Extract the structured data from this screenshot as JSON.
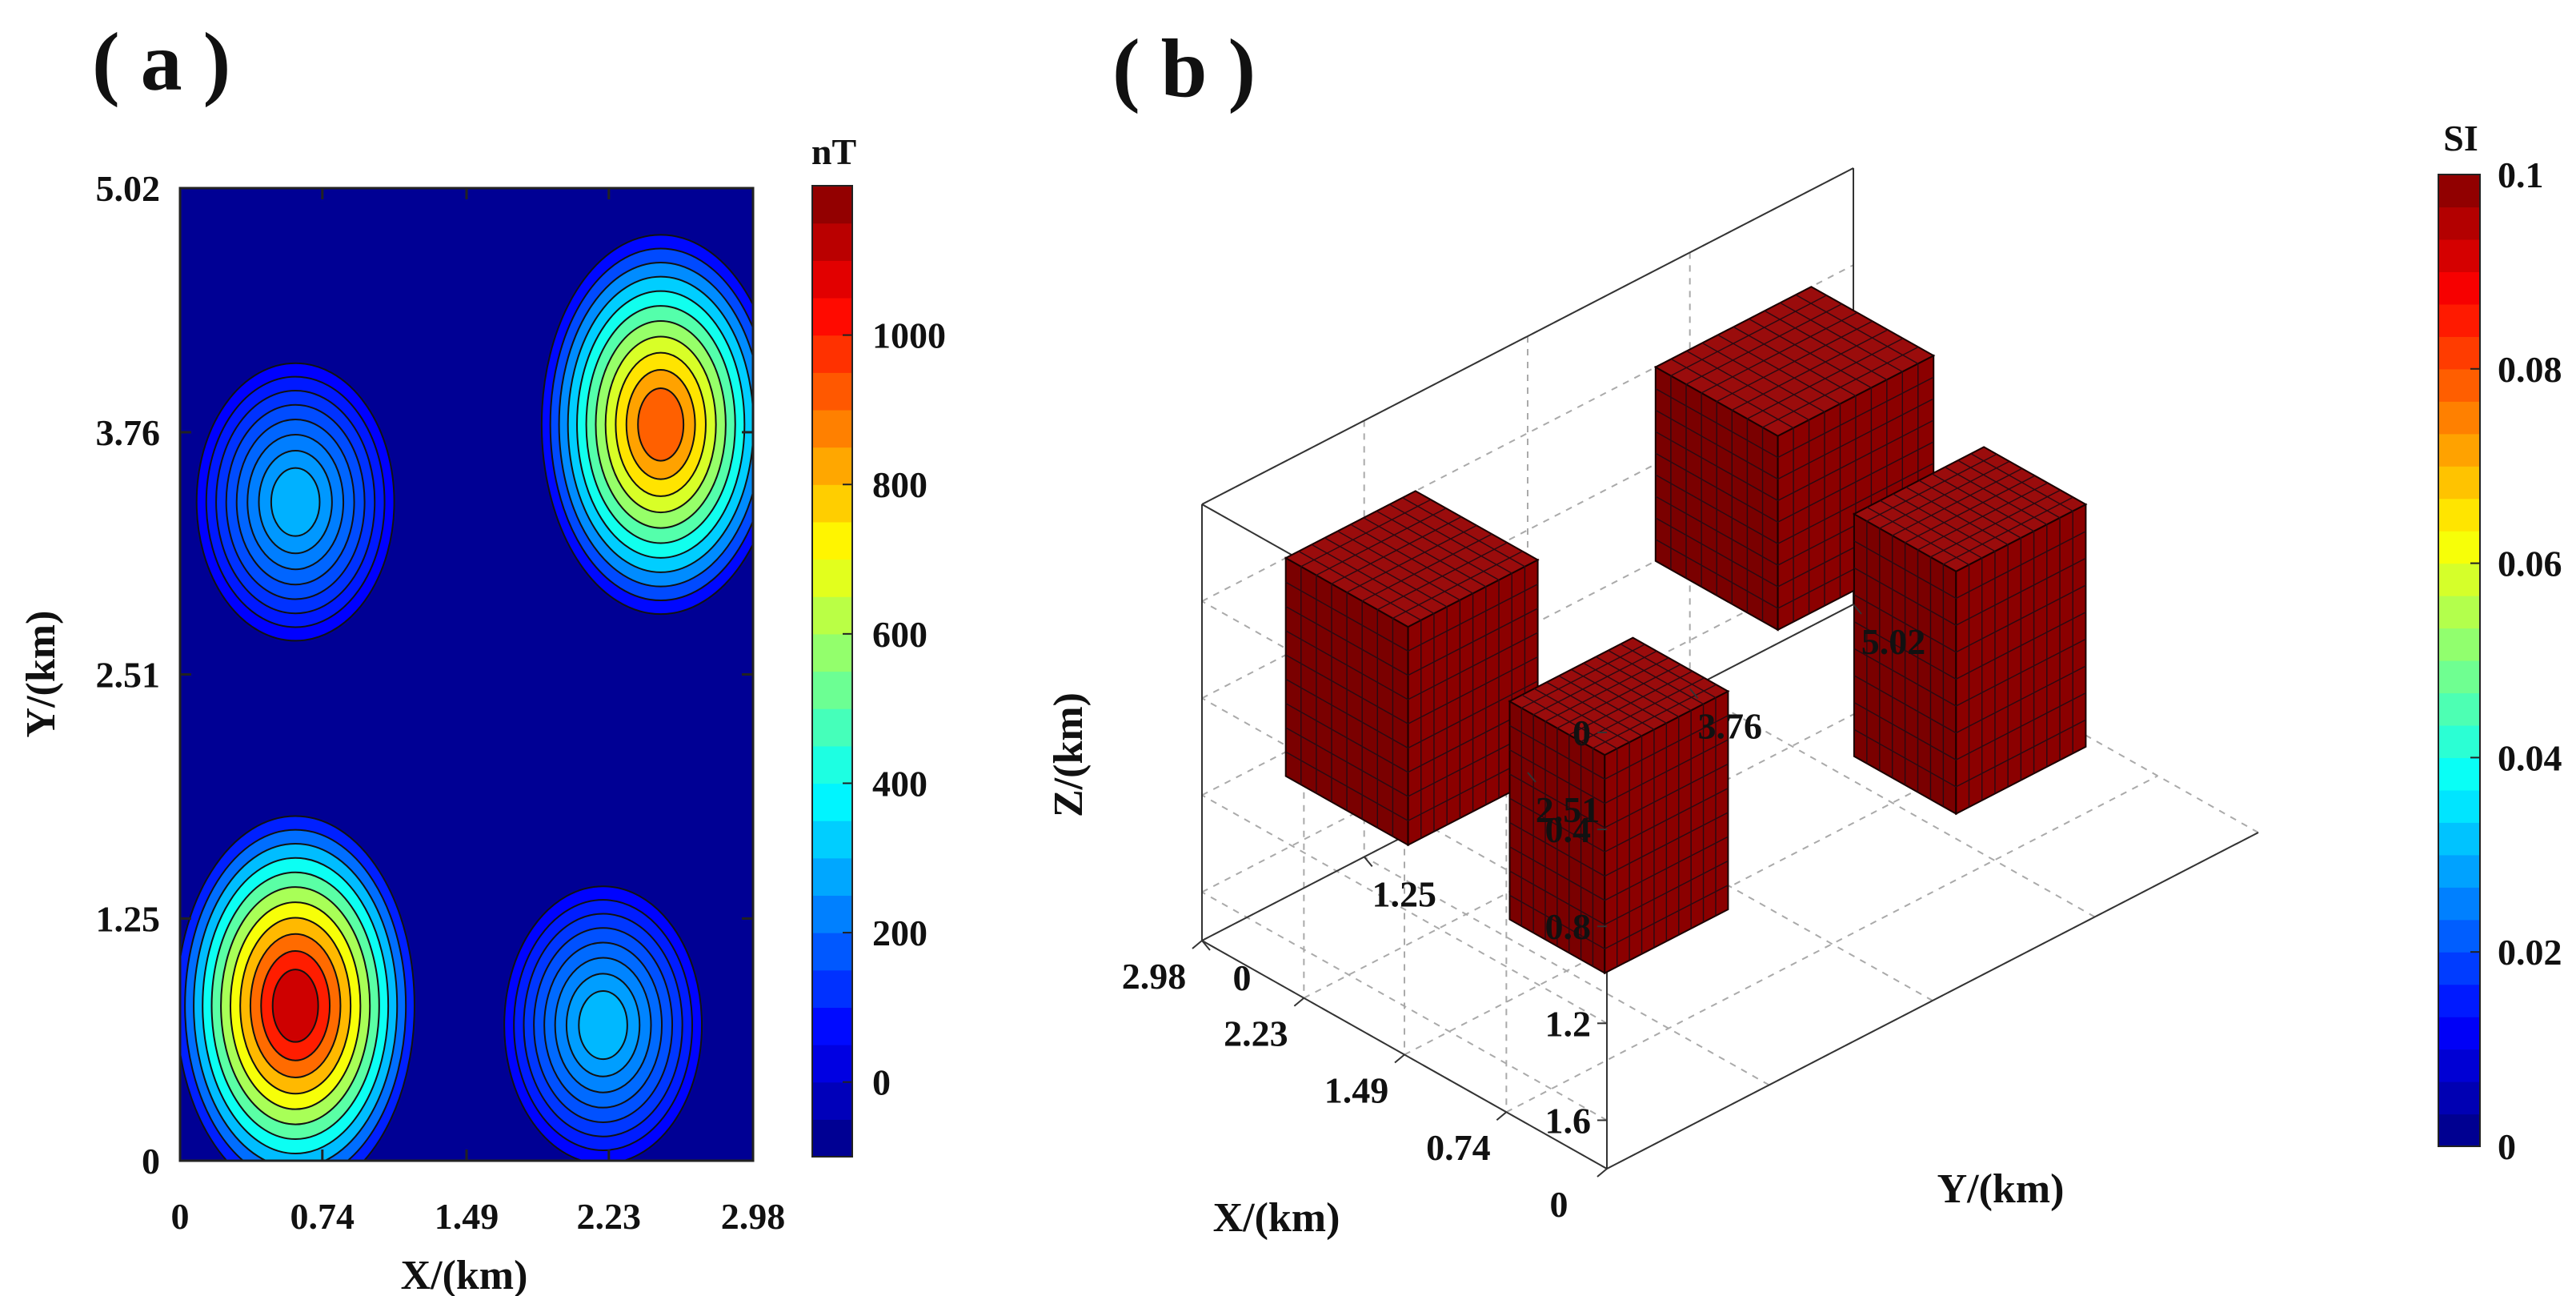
{
  "figure": {
    "panel_a_label": "( a )",
    "panel_b_label": "( b )"
  },
  "chart_data": [
    {
      "type": "heatmap",
      "subtype": "filled-contour",
      "panel": "a",
      "xlabel": "X/(km)",
      "ylabel": "Y/(km)",
      "xlim": [
        0,
        2.98
      ],
      "ylim": [
        0,
        5.02
      ],
      "xticks": [
        "0",
        "0.74",
        "1.49",
        "2.23",
        "2.98"
      ],
      "yticks": [
        "0",
        "1.25",
        "2.51",
        "3.76",
        "5.02"
      ],
      "colorbar": {
        "title": "nT",
        "range": [
          -100,
          1200
        ],
        "ticks": [
          "0",
          "200",
          "400",
          "600",
          "800",
          "1000"
        ],
        "tick_values": [
          0,
          200,
          400,
          600,
          800,
          1000
        ]
      },
      "anomalies": [
        {
          "label": "lower-left",
          "x": 0.6,
          "y": 0.8,
          "peak_nT": 1200
        },
        {
          "label": "upper-left",
          "x": 0.6,
          "y": 3.4,
          "peak_nT": 320
        },
        {
          "label": "upper-right",
          "x": 2.5,
          "y": 3.8,
          "peak_nT": 1000
        },
        {
          "label": "lower-right",
          "x": 2.2,
          "y": 0.7,
          "peak_nT": 330
        }
      ]
    },
    {
      "type": "scatter",
      "subtype": "3d-voxel",
      "panel": "b",
      "xlabel": "X/(km)",
      "ylabel": "Y/(km)",
      "zlabel": "Z/(km)",
      "xlim": [
        0,
        2.98
      ],
      "ylim": [
        0,
        5.02
      ],
      "zlim": [
        0,
        1.8
      ],
      "xticks": [
        "0",
        "0.74",
        "1.49",
        "2.23",
        "2.98"
      ],
      "yticks": [
        "0",
        "1.25",
        "2.51",
        "3.76",
        "5.02"
      ],
      "zticks": [
        "0",
        "0.4",
        "0.8",
        "1.2",
        "1.6"
      ],
      "colorbar": {
        "title": "SI",
        "range": [
          0,
          0.1
        ],
        "ticks": [
          "0",
          "0.02",
          "0.04",
          "0.06",
          "0.08",
          "0.1"
        ],
        "tick_values": [
          0,
          0.02,
          0.04,
          0.06,
          0.08,
          0.1
        ]
      },
      "bodies": [
        {
          "label": "body-near-x-low-y",
          "x": [
            0.35,
            1.05
          ],
          "y": [
            0.35,
            1.3
          ],
          "z": [
            0.3,
            1.2
          ],
          "susceptibility_SI": 0.1
        },
        {
          "label": "body-far-x-high-y",
          "x": [
            1.75,
            2.65
          ],
          "y": [
            3.15,
            4.35
          ],
          "z": [
            0.2,
            1.0
          ],
          "susceptibility_SI": 0.1
        },
        {
          "label": "body-near-x-high-y",
          "x": [
            0.2,
            0.95
          ],
          "y": [
            2.9,
            3.9
          ],
          "z": [
            0.2,
            1.2
          ],
          "susceptibility_SI": 0.1
        },
        {
          "label": "body-far-x-low-y",
          "x": [
            1.75,
            2.65
          ],
          "y": [
            0.3,
            1.3
          ],
          "z": [
            0.2,
            1.1
          ],
          "susceptibility_SI": 0.1
        }
      ]
    }
  ]
}
